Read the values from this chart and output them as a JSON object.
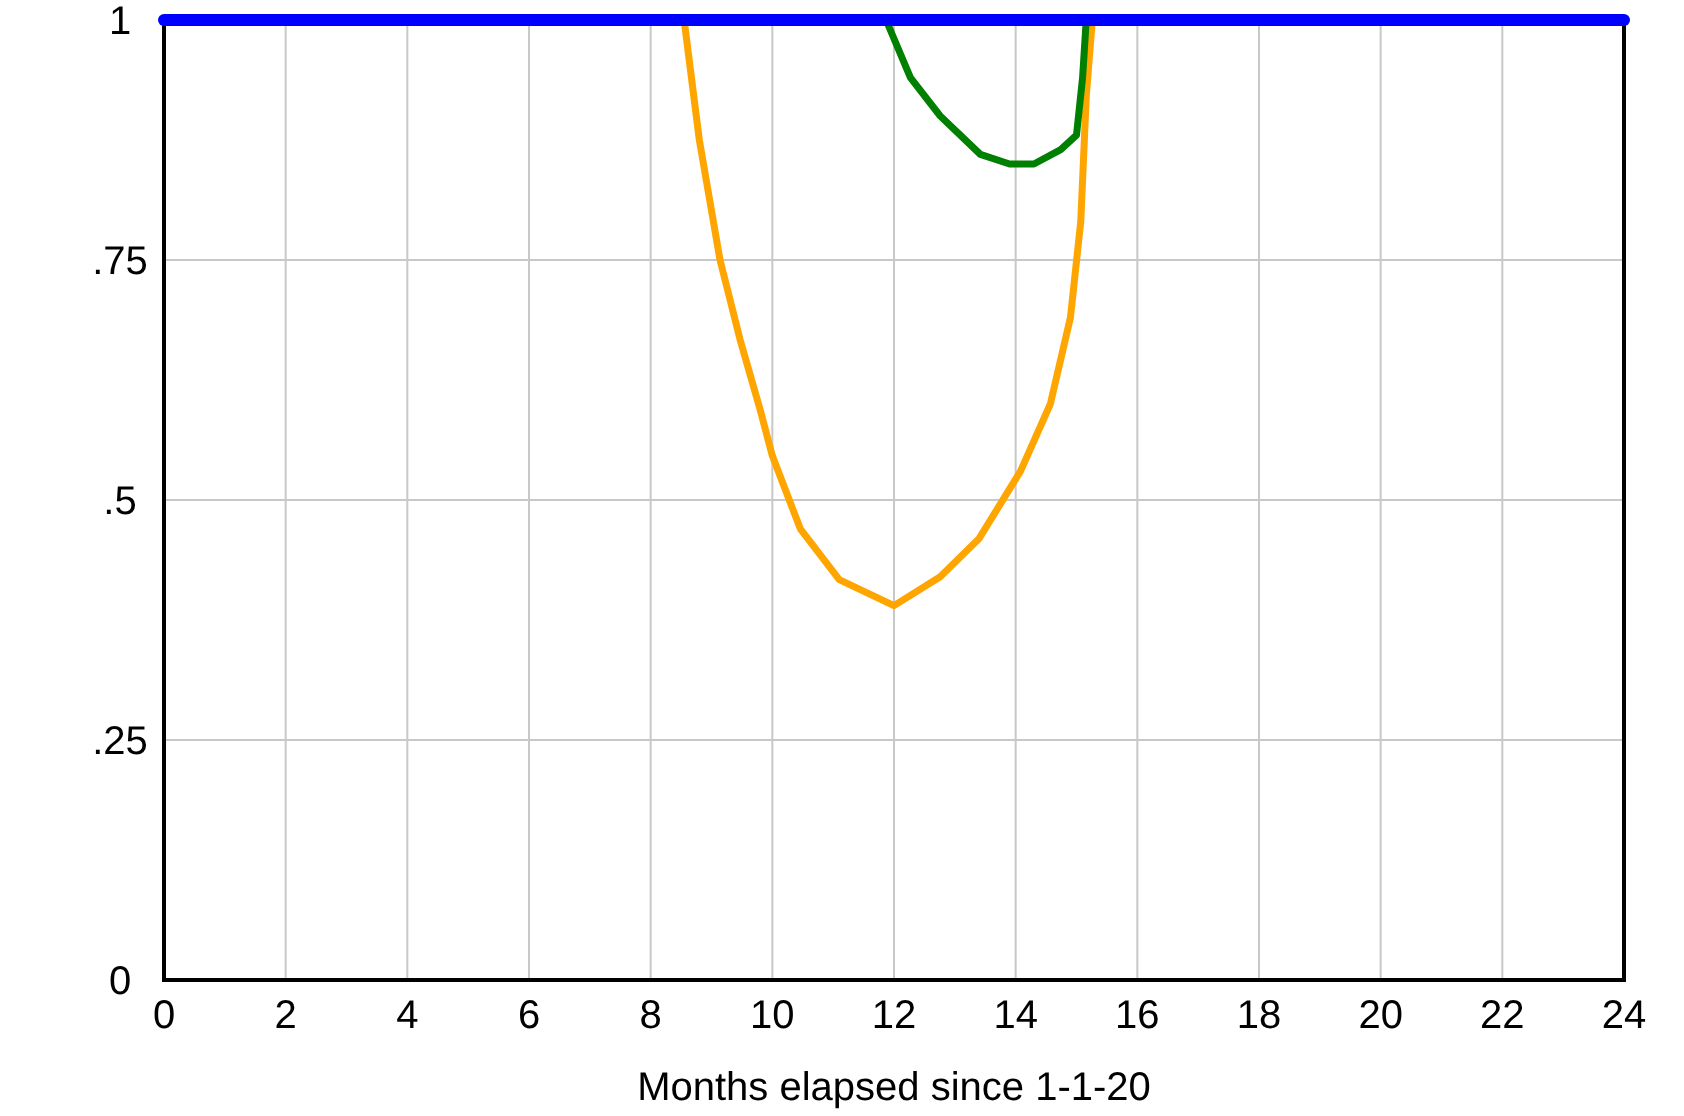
{
  "chart_data": {
    "type": "line",
    "xlabel": "Months elapsed since 1-1-20",
    "xlim": [
      0,
      24
    ],
    "xticks": [
      0,
      2,
      4,
      6,
      8,
      10,
      12,
      14,
      16,
      18,
      20,
      22,
      24
    ],
    "ylim": [
      0,
      1
    ],
    "yticks": [
      0,
      {
        "value": 0.25,
        "label": ".25"
      },
      {
        "value": 0.5,
        "label": ".5"
      },
      {
        "value": 0.75,
        "label": ".75"
      },
      1
    ],
    "grid": true,
    "series": [
      {
        "color": "#ffa500",
        "x": [
          8.55,
          8.8,
          9.14,
          9.47,
          9.8,
          10,
          10.46,
          11.1,
          12,
          12.76,
          13.4,
          14.08,
          14.57,
          14.9,
          15.07,
          15.16,
          15.26
        ],
        "values": [
          1,
          0.875,
          0.75,
          0.667,
          0.594,
          0.546,
          0.47,
          0.417,
          0.39,
          0.42,
          0.46,
          0.53,
          0.6,
          0.69,
          0.79,
          0.92,
          1
        ]
      },
      {
        "color": "#008000",
        "x": [
          11.87,
          12.27,
          12.76,
          13.42,
          13.9,
          14.3,
          14.74,
          15,
          15.1,
          15.16
        ],
        "values": [
          1,
          0.94,
          0.9,
          0.86,
          0.85,
          0.85,
          0.865,
          0.88,
          0.94,
          1
        ]
      },
      {
        "color": "#0000ff",
        "x": [
          0,
          24
        ],
        "values": [
          1,
          1
        ]
      }
    ]
  }
}
